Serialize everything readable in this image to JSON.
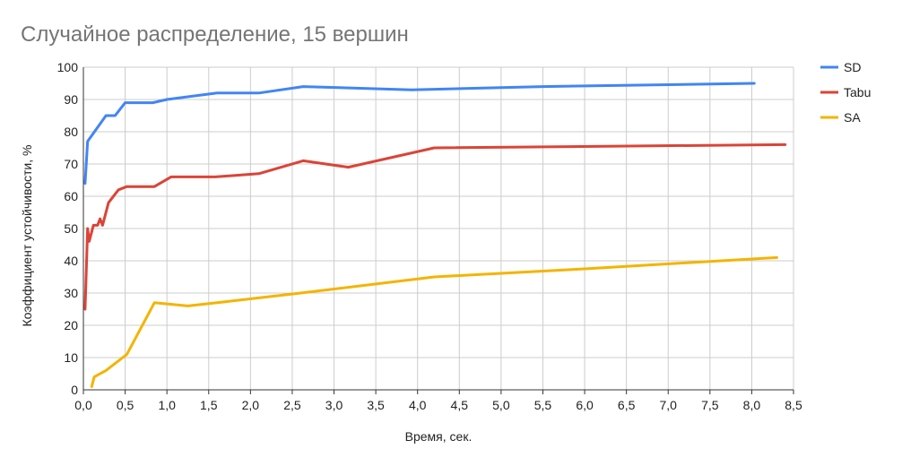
{
  "chart_data": {
    "type": "line",
    "title": "Случайное распределение, 15 вершин",
    "xlabel": "Время, сек.",
    "ylabel": "Коэффициент устойчивости, %",
    "xlim": [
      0,
      8.5
    ],
    "ylim": [
      0,
      100
    ],
    "x_ticks": [
      "0,0",
      "0,5",
      "1,0",
      "1,5",
      "2,0",
      "2,5",
      "3,0",
      "3,5",
      "4,0",
      "4,5",
      "5,0",
      "5,5",
      "6,0",
      "6,5",
      "7,0",
      "7,5",
      "8,0",
      "8,5"
    ],
    "y_ticks": [
      "0",
      "10",
      "20",
      "30",
      "40",
      "50",
      "60",
      "70",
      "80",
      "90",
      "100"
    ],
    "grid": true,
    "legend_position": "right",
    "series": [
      {
        "name": "SD",
        "color": "#4285f4",
        "points": [
          [
            0.02,
            64
          ],
          [
            0.05,
            77
          ],
          [
            0.27,
            85
          ],
          [
            0.38,
            85
          ],
          [
            0.5,
            89
          ],
          [
            0.83,
            89
          ],
          [
            1.0,
            90
          ],
          [
            1.6,
            92
          ],
          [
            2.1,
            92
          ],
          [
            2.63,
            94
          ],
          [
            3.93,
            93
          ],
          [
            5.5,
            94
          ],
          [
            8.03,
            95
          ]
        ]
      },
      {
        "name": "Tabu",
        "color": "#db4437",
        "points": [
          [
            0.02,
            25
          ],
          [
            0.05,
            50
          ],
          [
            0.07,
            46
          ],
          [
            0.12,
            51
          ],
          [
            0.17,
            51
          ],
          [
            0.2,
            53
          ],
          [
            0.23,
            51
          ],
          [
            0.3,
            58
          ],
          [
            0.42,
            62
          ],
          [
            0.52,
            63
          ],
          [
            0.85,
            63
          ],
          [
            1.05,
            66
          ],
          [
            1.58,
            66
          ],
          [
            2.1,
            67
          ],
          [
            2.63,
            71
          ],
          [
            3.17,
            69
          ],
          [
            4.2,
            75
          ],
          [
            8.4,
            76
          ]
        ]
      },
      {
        "name": "SA",
        "color": "#f4b400",
        "points": [
          [
            0.1,
            1
          ],
          [
            0.13,
            4
          ],
          [
            0.27,
            6
          ],
          [
            0.52,
            11
          ],
          [
            0.85,
            27
          ],
          [
            1.25,
            26
          ],
          [
            1.6,
            27
          ],
          [
            2.6,
            30
          ],
          [
            4.2,
            35
          ],
          [
            6.0,
            37.5
          ],
          [
            7.5,
            39.8
          ],
          [
            8.3,
            41
          ]
        ]
      }
    ]
  }
}
